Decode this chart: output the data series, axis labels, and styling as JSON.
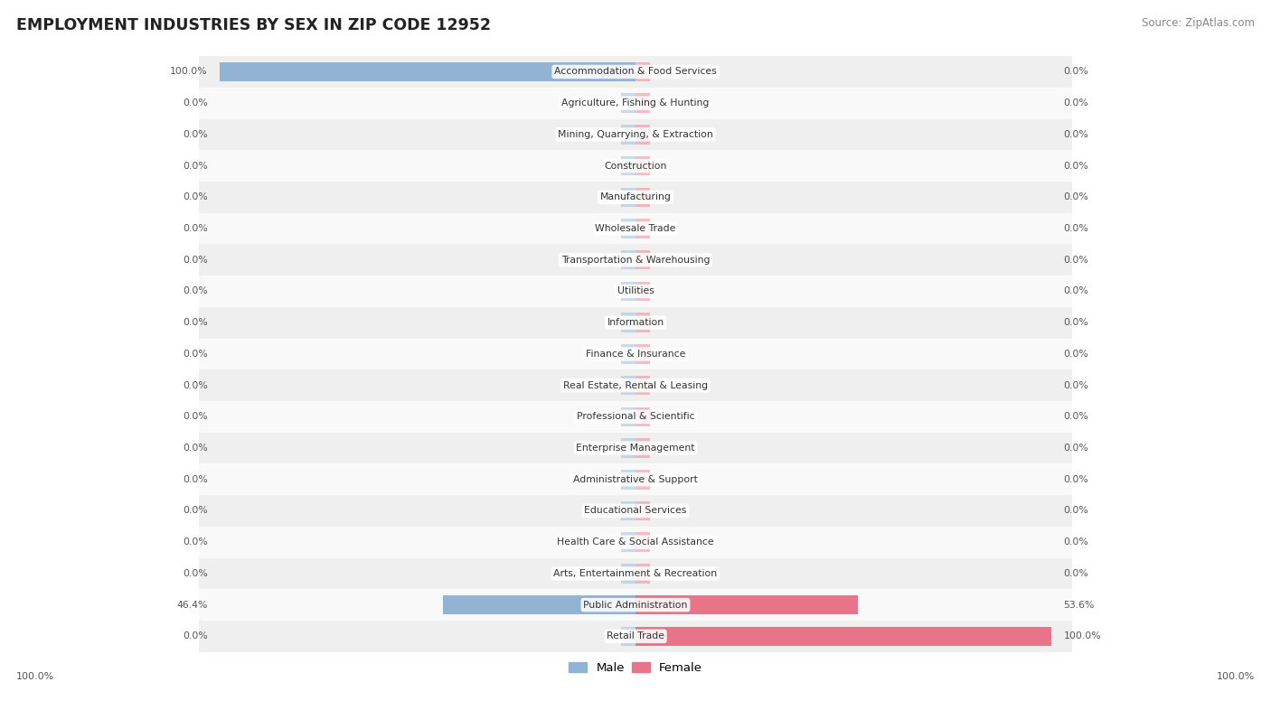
{
  "title": "EMPLOYMENT INDUSTRIES BY SEX IN ZIP CODE 12952",
  "source": "Source: ZipAtlas.com",
  "industries": [
    "Accommodation & Food Services",
    "Agriculture, Fishing & Hunting",
    "Mining, Quarrying, & Extraction",
    "Construction",
    "Manufacturing",
    "Wholesale Trade",
    "Transportation & Warehousing",
    "Utilities",
    "Information",
    "Finance & Insurance",
    "Real Estate, Rental & Leasing",
    "Professional & Scientific",
    "Enterprise Management",
    "Administrative & Support",
    "Educational Services",
    "Health Care & Social Assistance",
    "Arts, Entertainment & Recreation",
    "Public Administration",
    "Retail Trade"
  ],
  "male": [
    100.0,
    0.0,
    0.0,
    0.0,
    0.0,
    0.0,
    0.0,
    0.0,
    0.0,
    0.0,
    0.0,
    0.0,
    0.0,
    0.0,
    0.0,
    0.0,
    0.0,
    46.4,
    0.0
  ],
  "female": [
    0.0,
    0.0,
    0.0,
    0.0,
    0.0,
    0.0,
    0.0,
    0.0,
    0.0,
    0.0,
    0.0,
    0.0,
    0.0,
    0.0,
    0.0,
    0.0,
    0.0,
    53.6,
    100.0
  ],
  "male_color": "#92b4d4",
  "female_color": "#e8748a",
  "row_bg_even": "#efefef",
  "row_bg_odd": "#f9f9f9",
  "label_color": "#555555",
  "title_color": "#222222",
  "source_color": "#888888",
  "bar_height": 0.62,
  "stub_size": 3.5,
  "figsize": [
    14.06,
    7.76
  ],
  "dpi": 100
}
